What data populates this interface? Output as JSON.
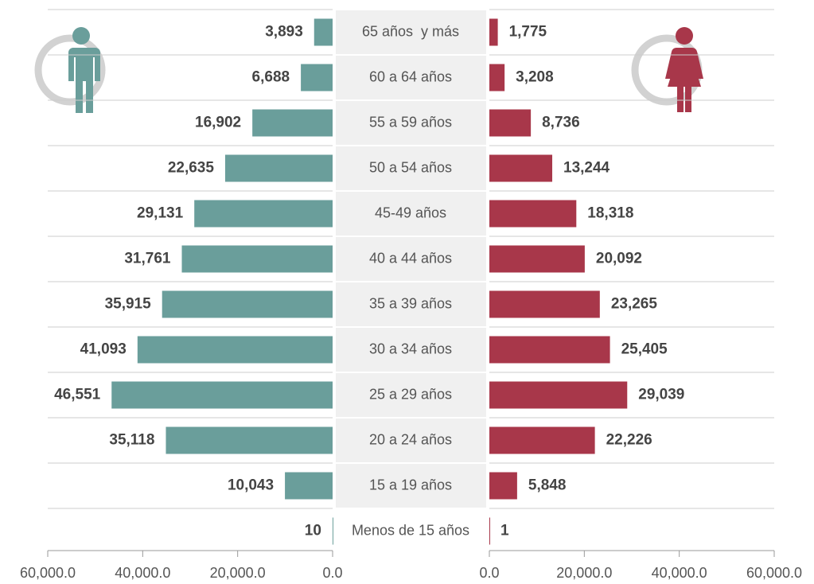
{
  "chart_data": {
    "type": "pyramid",
    "categories": [
      "65 años  y más",
      "60 a 64 años",
      "55 a 59 años",
      "50 a 54 años",
      "45-49 años",
      "40 a 44 años",
      "35 a 39 años",
      "30 a 34 años",
      "25 a 29 años",
      "20 a 24 años",
      "15 a 19 años",
      "Menos de 15 años"
    ],
    "series": [
      {
        "color": "#6a9e9b",
        "side": "left",
        "values": [
          3893,
          6688,
          16902,
          22635,
          29131,
          31761,
          35915,
          41093,
          46551,
          35118,
          10043,
          10
        ],
        "value_labels": [
          "3,893",
          "6,688",
          "16,902",
          "22,635",
          "29,131",
          "31,761",
          "35,915",
          "41,093",
          "46,551",
          "35,118",
          "10,043",
          "10"
        ],
        "xlim": [
          0,
          60000
        ],
        "xticks": [
          {
            "value": 60000,
            "label": "60,000.0"
          },
          {
            "value": 40000,
            "label": "40,000.0"
          },
          {
            "value": 20000,
            "label": "20,000.0"
          },
          {
            "value": 0,
            "label": "0.0"
          }
        ]
      },
      {
        "color": "#a8374a",
        "side": "right",
        "values": [
          1775,
          3208,
          8736,
          13244,
          18318,
          20092,
          23265,
          25405,
          29039,
          22226,
          5848,
          1
        ],
        "value_labels": [
          "1,775",
          "3,208",
          "8,736",
          "13,244",
          "18,318",
          "20,092",
          "23,265",
          "25,405",
          "29,039",
          "22,226",
          "5,848",
          "1"
        ],
        "xlim": [
          0,
          60000
        ],
        "xticks": [
          {
            "value": 0,
            "label": "0.0"
          },
          {
            "value": 20000,
            "label": "20,000.0"
          },
          {
            "value": 40000,
            "label": "40,000.0"
          },
          {
            "value": 60000,
            "label": "60,000.0"
          }
        ]
      }
    ],
    "grid": true
  }
}
